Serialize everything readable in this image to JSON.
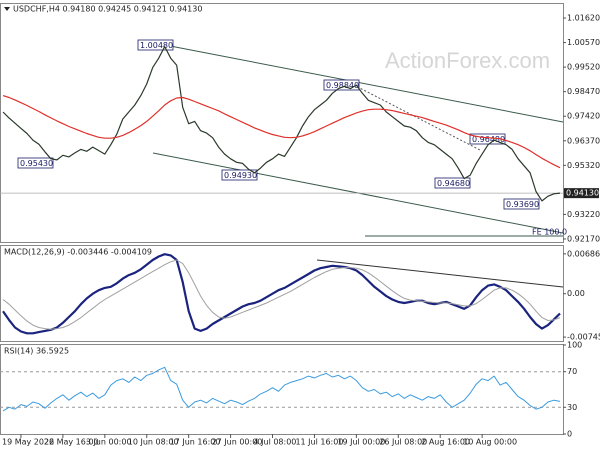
{
  "chart_data": [
    {
      "type": "line",
      "title": "USDCHF,H4  0.94180 0.94245 0.94121 0.94130",
      "watermark": "ActionForex.com",
      "categories": [
        null,
        null,
        null,
        "19 May 2022",
        null,
        null,
        null,
        null,
        null,
        null,
        "26 May 16:00",
        null,
        null,
        null,
        null,
        null,
        null,
        "3 Jun 00:00",
        null,
        null,
        null,
        null,
        null,
        null,
        "10 Jun 08:00",
        null,
        null,
        null,
        null,
        null,
        null,
        "17 Jun 16:00",
        null,
        null,
        null,
        null,
        null,
        null,
        "27 Jun 00:00",
        null,
        null,
        null,
        null,
        null,
        null,
        "4 Jul 08:00",
        null,
        null,
        null,
        null,
        null,
        null,
        "11 Jul 16:00",
        null,
        null,
        null,
        null,
        null,
        null,
        "19 Jul 00:00",
        null,
        null,
        null,
        null,
        null,
        null,
        "26 Jul 08:00",
        null,
        null,
        null,
        null,
        null,
        null,
        "2 Aug 16:00",
        null,
        null,
        null,
        null,
        null,
        null,
        "10 Aug 00:00",
        null,
        null,
        null,
        null,
        null,
        null,
        null,
        null,
        null,
        null,
        null,
        null,
        null
      ],
      "series": [
        {
          "color": "#2b3a2b",
          "values": [
            0.976,
            0.9735,
            0.9712,
            0.969,
            0.9668,
            0.964,
            0.9622,
            0.959,
            0.956,
            0.9555,
            0.9575,
            0.9568,
            0.9585,
            0.96,
            0.9592,
            0.961,
            0.9595,
            0.958,
            0.962,
            0.9665,
            0.973,
            0.976,
            0.979,
            0.983,
            0.988,
            0.995,
            0.999,
            1.004,
            0.999,
            0.996,
            0.978,
            0.971,
            0.972,
            0.968,
            0.967,
            0.965,
            0.961,
            0.958,
            0.956,
            0.9545,
            0.954,
            0.9515,
            0.95,
            0.952,
            0.9545,
            0.956,
            0.958,
            0.957,
            0.961,
            0.965,
            0.97,
            0.974,
            0.977,
            0.979,
            0.981,
            0.984,
            0.986,
            0.987,
            0.986,
            0.9875,
            0.984,
            0.981,
            0.98,
            0.979,
            0.976,
            0.974,
            0.972,
            0.97,
            0.9695,
            0.968,
            0.965,
            0.963,
            0.962,
            0.96,
            0.958,
            0.956,
            0.952,
            0.9475,
            0.949,
            0.954,
            0.958,
            0.962,
            0.964,
            0.963,
            0.962,
            0.96,
            0.956,
            0.953,
            0.95,
            0.942,
            0.938,
            0.94,
            0.941,
            0.9413
          ]
        },
        {
          "color": "#e0302a",
          "values": [
            0.983,
            0.9822,
            0.9812,
            0.98,
            0.9788,
            0.9775,
            0.9762,
            0.9748,
            0.9735,
            0.9722,
            0.971,
            0.9698,
            0.9688,
            0.9678,
            0.9668,
            0.966,
            0.9652,
            0.9648,
            0.9648,
            0.9652,
            0.966,
            0.9672,
            0.9686,
            0.9702,
            0.972,
            0.9742,
            0.9765,
            0.979,
            0.9808,
            0.982,
            0.9822,
            0.9815,
            0.9805,
            0.9795,
            0.9785,
            0.9775,
            0.9765,
            0.9752,
            0.974,
            0.9728,
            0.9716,
            0.9704,
            0.9692,
            0.9682,
            0.9672,
            0.9664,
            0.9658,
            0.9652,
            0.965,
            0.9652,
            0.9658,
            0.9666,
            0.9676,
            0.9688,
            0.97,
            0.9712,
            0.9724,
            0.9736,
            0.9746,
            0.9756,
            0.9764,
            0.977,
            0.9772,
            0.9772,
            0.977,
            0.9766,
            0.976,
            0.9754,
            0.9748,
            0.9742,
            0.9736,
            0.9728,
            0.972,
            0.9712,
            0.9704,
            0.9694,
            0.9684,
            0.9672,
            0.9662,
            0.9656,
            0.9652,
            0.965,
            0.9648,
            0.9646,
            0.9638,
            0.963,
            0.962,
            0.9608,
            0.9594,
            0.9578,
            0.9562,
            0.9548,
            0.9534,
            0.9522
          ]
        }
      ],
      "ylim": [
        0.9204,
        1.0222
      ],
      "yticks": [
        {
          "value": 1.0162,
          "label": "1.01620"
        },
        {
          "value": 1.0057,
          "label": "1.00570"
        },
        {
          "value": 0.9952,
          "label": "0.99520"
        },
        {
          "value": 0.9847,
          "label": "0.98470"
        },
        {
          "value": 0.9742,
          "label": "0.97420"
        },
        {
          "value": 0.9637,
          "label": "0.96370"
        },
        {
          "value": 0.9532,
          "label": "0.95320"
        },
        {
          "value": 0.9322,
          "label": "0.93220"
        },
        {
          "value": 0.9217,
          "label": "0.92170"
        }
      ],
      "last_price": {
        "value": 0.9413,
        "label": "0.94130"
      },
      "annotations": [
        "1.00480",
        "0.98840",
        "0.96480",
        "0.95430",
        "0.94930",
        "0.94680",
        "0.93690",
        "FE 100.0"
      ]
    },
    {
      "type": "line",
      "title": "MACD(12,26,9) -0.003446 -0.004109",
      "series": [
        {
          "color": "#1a237e",
          "width": 2.2,
          "values": [
            -0.003,
            -0.0045,
            -0.0058,
            -0.0065,
            -0.0068,
            -0.0068,
            -0.0066,
            -0.0064,
            -0.0062,
            -0.0058,
            -0.005,
            -0.004,
            -0.003,
            -0.0018,
            -0.0008,
            0,
            0.0006,
            0.001,
            0.0012,
            0.0018,
            0.0026,
            0.0032,
            0.0036,
            0.0042,
            0.005,
            0.0058,
            0.0064,
            0.0068,
            0.0066,
            0.0058,
            0.002,
            -0.003,
            -0.006,
            -0.0064,
            -0.006,
            -0.0052,
            -0.0046,
            -0.004,
            -0.0034,
            -0.0028,
            -0.0022,
            -0.0018,
            -0.0016,
            -0.0012,
            -0.0006,
            0,
            0.0006,
            0.001,
            0.0016,
            0.0022,
            0.0028,
            0.0034,
            0.004,
            0.0044,
            0.0046,
            0.0048,
            0.0047,
            0.0046,
            0.0044,
            0.004,
            0.0032,
            0.0022,
            0.0012,
            0.0004,
            -0.0004,
            -0.001,
            -0.0014,
            -0.0016,
            -0.0014,
            -0.0012,
            -0.0012,
            -0.0016,
            -0.0018,
            -0.0016,
            -0.0014,
            -0.0018,
            -0.0022,
            -0.0026,
            -0.002,
            -0.0006,
            0.0006,
            0.0014,
            0.0016,
            0.0012,
            0.0006,
            -0.0004,
            -0.0014,
            -0.0026,
            -0.004,
            -0.0052,
            -0.006,
            -0.0054,
            -0.0044,
            -0.0034
          ]
        },
        {
          "color": "#a0a0a0",
          "width": 1,
          "values": [
            -0.001,
            -0.0018,
            -0.0028,
            -0.0038,
            -0.0047,
            -0.0054,
            -0.0058,
            -0.006,
            -0.0061,
            -0.006,
            -0.0058,
            -0.0054,
            -0.0048,
            -0.0041,
            -0.0033,
            -0.0025,
            -0.0017,
            -0.001,
            -0.0004,
            0.0002,
            0.0008,
            0.0014,
            0.002,
            0.0026,
            0.0032,
            0.0038,
            0.0044,
            0.005,
            0.0055,
            0.0058,
            0.0052,
            0.0036,
            0.0016,
            -0.0004,
            -0.002,
            -0.0032,
            -0.004,
            -0.0042,
            -0.004,
            -0.0036,
            -0.0032,
            -0.0028,
            -0.0024,
            -0.002,
            -0.0016,
            -0.0011,
            -0.0006,
            -0.0001,
            0.0004,
            0.001,
            0.0016,
            0.0022,
            0.0028,
            0.0033,
            0.0038,
            0.0042,
            0.0044,
            0.0045,
            0.0045,
            0.0044,
            0.0041,
            0.0036,
            0.0029,
            0.0021,
            0.0013,
            0.0005,
            -0.0002,
            -0.0008,
            -0.0011,
            -0.0012,
            -0.0013,
            -0.0014,
            -0.0015,
            -0.0016,
            -0.0016,
            -0.0017,
            -0.0019,
            -0.0021,
            -0.0021,
            -0.0017,
            -0.001,
            -0.0002,
            0.0006,
            0.001,
            0.001,
            0.0006,
            0,
            -0.0008,
            -0.0018,
            -0.003,
            -0.0041,
            -0.0046,
            -0.0045,
            -0.0041
          ]
        }
      ],
      "ylim": [
        -0.00813,
        0.00821
      ],
      "yticks": [
        0.006861,
        {
          "value": 0,
          "label": "0.00"
        },
        -0.007454
      ]
    },
    {
      "type": "line",
      "title": "RSI(14) 36.5925",
      "series": [
        {
          "color": "#3a9be0",
          "width": 1,
          "values": [
            26,
            30,
            28,
            33,
            31,
            36,
            34,
            29,
            35,
            40,
            44,
            38,
            43,
            47,
            42,
            46,
            40,
            44,
            55,
            60,
            62,
            58,
            64,
            60,
            66,
            68,
            72,
            75,
            60,
            56,
            38,
            30,
            36,
            38,
            35,
            40,
            37,
            34,
            38,
            36,
            33,
            37,
            40,
            45,
            48,
            52,
            48,
            55,
            58,
            60,
            62,
            65,
            63,
            66,
            68,
            64,
            66,
            62,
            65,
            60,
            52,
            48,
            50,
            45,
            47,
            42,
            45,
            40,
            44,
            41,
            38,
            42,
            40,
            44,
            36,
            30,
            34,
            38,
            46,
            56,
            62,
            60,
            65,
            55,
            58,
            50,
            42,
            38,
            32,
            28,
            30,
            36,
            38,
            36.6
          ]
        }
      ],
      "ylim": [
        0,
        100
      ],
      "yticks": [
        0,
        30,
        70,
        100
      ],
      "levels": [
        30,
        70
      ]
    }
  ]
}
